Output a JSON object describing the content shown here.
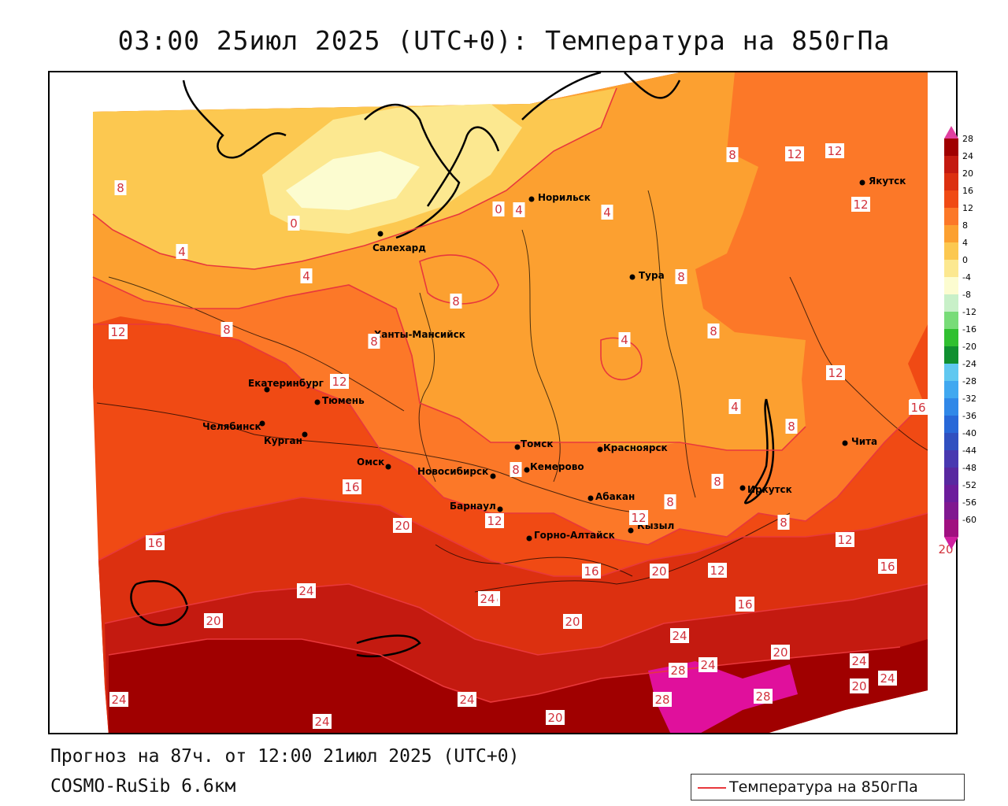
{
  "header": {
    "title": "03:00 25июл 2025 (UTC+0): Температура на 850гПа"
  },
  "footer": {
    "forecast": "Прогноз на 87ч. от 12:00 21июл 2025 (UTC+0)",
    "model": "COSMO-RuSib 6.6км"
  },
  "legend": {
    "label": "Температура на 850гПа",
    "line_color": "#e8383c"
  },
  "colorscale": {
    "ticks": [
      "28",
      "24",
      "20",
      "16",
      "12",
      "8",
      "4",
      "0",
      "-4",
      "-8",
      "-12",
      "-16",
      "-20",
      "-24",
      "-28",
      "-32",
      "-36",
      "-40",
      "-44",
      "-48",
      "-52",
      "-56",
      "-60"
    ],
    "colors": [
      "#a00000",
      "#c41a10",
      "#dc3010",
      "#f04a14",
      "#fc7828",
      "#fca030",
      "#fcc850",
      "#fce890",
      "#fcfcd0",
      "#c8f0c8",
      "#78dc78",
      "#30c030",
      "#109030",
      "#60c8f0",
      "#40a8f0",
      "#3088e8",
      "#2868d8",
      "#3050c0",
      "#4838b0",
      "#5828a0",
      "#6c1c9c",
      "#801890",
      "#a01080"
    ],
    "top_arrow_color": "#e040a0",
    "bottom_arrow_color": "#d020a0"
  },
  "cities": [
    {
      "name": "Норильск"
    },
    {
      "name": "Якутск"
    },
    {
      "name": "Салехард"
    },
    {
      "name": "Тура"
    },
    {
      "name": "Ханты-Мансийск"
    },
    {
      "name": "Екатеринбург"
    },
    {
      "name": "Тюмень"
    },
    {
      "name": "Челябинск"
    },
    {
      "name": "Курган"
    },
    {
      "name": "Омск"
    },
    {
      "name": "Новосибирск"
    },
    {
      "name": "Томск"
    },
    {
      "name": "Кемерово"
    },
    {
      "name": "Красноярск"
    },
    {
      "name": "Барнаул"
    },
    {
      "name": "Абакан"
    },
    {
      "name": "Горно-Алтайск"
    },
    {
      "name": "Кызыл"
    },
    {
      "name": "Иркутск"
    },
    {
      "name": "Чита"
    }
  ],
  "isotherm_labels": [
    "0",
    "0",
    "4",
    "4",
    "4",
    "4",
    "4",
    "4",
    "8",
    "8",
    "8",
    "8",
    "8",
    "8",
    "8",
    "8",
    "8",
    "8",
    "8",
    "8",
    "12",
    "12",
    "12",
    "12",
    "12",
    "12",
    "12",
    "12",
    "12",
    "12",
    "12",
    "16",
    "16",
    "16",
    "16",
    "16",
    "16",
    "16",
    "20",
    "20",
    "20",
    "20",
    "20",
    "20",
    "20",
    "20",
    "24",
    "24",
    "24",
    "24",
    "24",
    "24",
    "24",
    "24",
    "24",
    "28",
    "28",
    "28"
  ]
}
